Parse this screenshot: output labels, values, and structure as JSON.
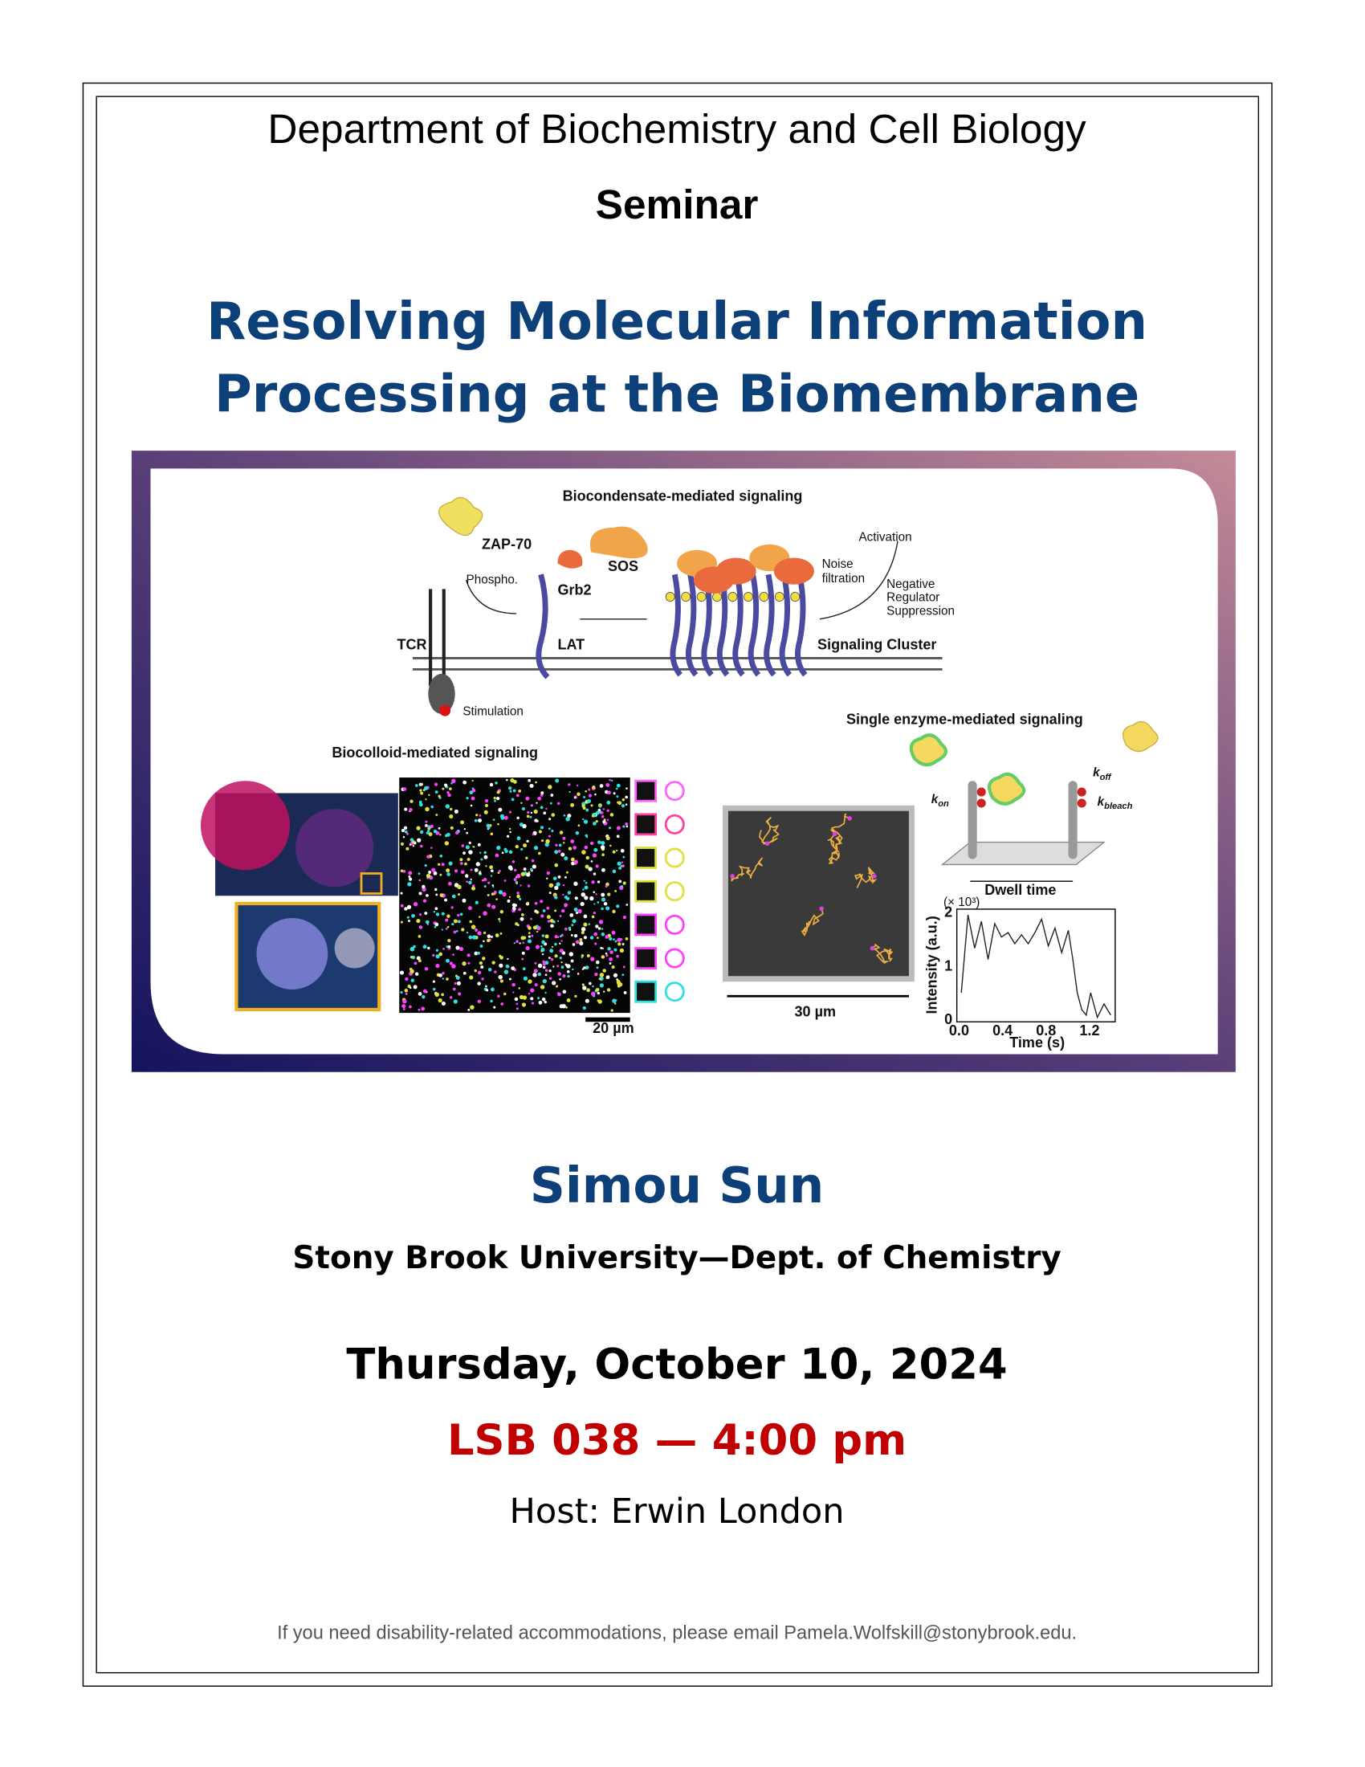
{
  "header": {
    "department": "Department of Biochemistry and Cell Biology",
    "event_type": "Seminar"
  },
  "title": [
    "Resolving Molecular Information",
    "Processing at the Biomembrane"
  ],
  "figure": {
    "condensate": {
      "title": "Biocondensate-mediated signaling",
      "zap70": "ZAP-70",
      "sos": "SOS",
      "grb2": "Grb2",
      "phospho": "Phospho.",
      "tcr": "TCR",
      "lat": "LAT",
      "stimulation": "Stimulation",
      "cluster": "Signaling Cluster",
      "activation": "Activation",
      "noise": [
        "Noise",
        "filtration"
      ],
      "suppression": [
        "Negative",
        "Regulator",
        "Suppression"
      ]
    },
    "colloid": {
      "title": "Biocolloid-mediated signaling",
      "scale": "20 µm"
    },
    "enzyme": {
      "title": "Single enzyme-mediated signaling",
      "scale": "30 µm",
      "kon": [
        "k",
        "on"
      ],
      "koff": [
        "k",
        "off"
      ],
      "kbleach": [
        "k",
        "bleach"
      ],
      "dwell": "Dwell time",
      "y_label": "Intensity (a.u.)",
      "y_unit": "(× 10³)",
      "x_label": "Time (s)",
      "xticks": [
        "0.0",
        "0.4",
        "0.8",
        "1.2"
      ],
      "yticks": [
        "0",
        "1",
        "2"
      ]
    }
  },
  "speaker": {
    "name": "Simou Sun",
    "affiliation": "Stony Brook University—Dept. of Chemistry"
  },
  "event": {
    "date": "Thursday, October 10, 2024",
    "location_time": "LSB 038 — 4:00 pm",
    "host": "Host: Erwin London"
  },
  "footer": "If you need disability-related accommodations, please email Pamela.Wolfskill@stonybrook.edu."
}
